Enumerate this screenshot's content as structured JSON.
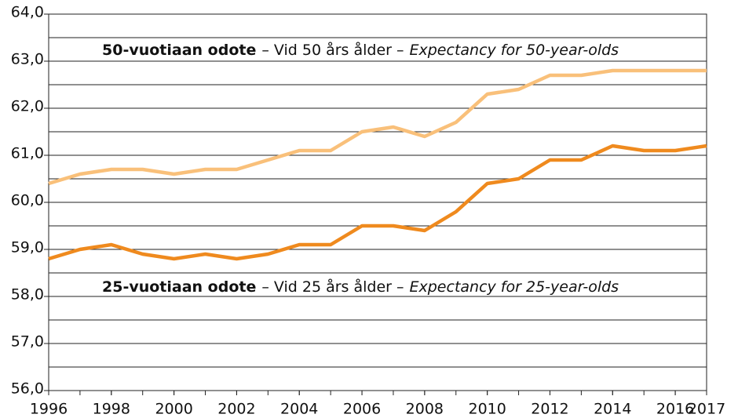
{
  "chart_data": {
    "type": "line",
    "x": [
      1996,
      1997,
      1998,
      1999,
      2000,
      2001,
      2002,
      2003,
      2004,
      2005,
      2006,
      2007,
      2008,
      2009,
      2010,
      2011,
      2012,
      2013,
      2014,
      2015,
      2016,
      2017
    ],
    "series": [
      {
        "annotation": [
          "50-vuotiaan odote",
          "– Vid 50 års ålder –",
          "Expectancy for 50-year-olds"
        ],
        "color": "#f9c07a",
        "values": [
          60.4,
          60.6,
          60.7,
          60.7,
          60.6,
          60.7,
          60.7,
          60.9,
          61.1,
          61.1,
          61.5,
          61.6,
          61.4,
          61.7,
          62.3,
          62.4,
          62.7,
          62.7,
          62.8,
          62.8,
          62.8,
          62.8
        ]
      },
      {
        "annotation": [
          "25-vuotiaan odote",
          "– Vid 25 års ålder –",
          "Expectancy for 25-year-olds"
        ],
        "color": "#ef8a1e",
        "values": [
          58.8,
          59.0,
          59.1,
          58.9,
          58.8,
          58.9,
          58.8,
          58.9,
          59.1,
          59.1,
          59.5,
          59.5,
          59.4,
          59.8,
          60.4,
          60.5,
          60.9,
          60.9,
          61.2,
          61.1,
          61.1,
          61.2
        ]
      }
    ],
    "xlim": [
      1996,
      2017
    ],
    "xticks": [
      1996,
      1998,
      2000,
      2002,
      2004,
      2006,
      2008,
      2010,
      2012,
      2014,
      2016,
      2017
    ],
    "ylim": [
      56,
      64
    ],
    "yticks": [
      {
        "value": 56,
        "label": "56,0"
      },
      {
        "value": 57,
        "label": "57,0"
      },
      {
        "value": 58,
        "label": "58,0"
      },
      {
        "value": 59,
        "label": "59,0"
      },
      {
        "value": 60,
        "label": "60,0"
      },
      {
        "value": 61,
        "label": "61,0"
      },
      {
        "value": 62,
        "label": "62,0"
      },
      {
        "value": 63,
        "label": "63,0"
      },
      {
        "value": 64,
        "label": "64,0"
      }
    ],
    "yminorticks": [
      56.5,
      57.5,
      58.5,
      59.5,
      60.5,
      61.5,
      62.5,
      63.5
    ],
    "grid": true
  }
}
